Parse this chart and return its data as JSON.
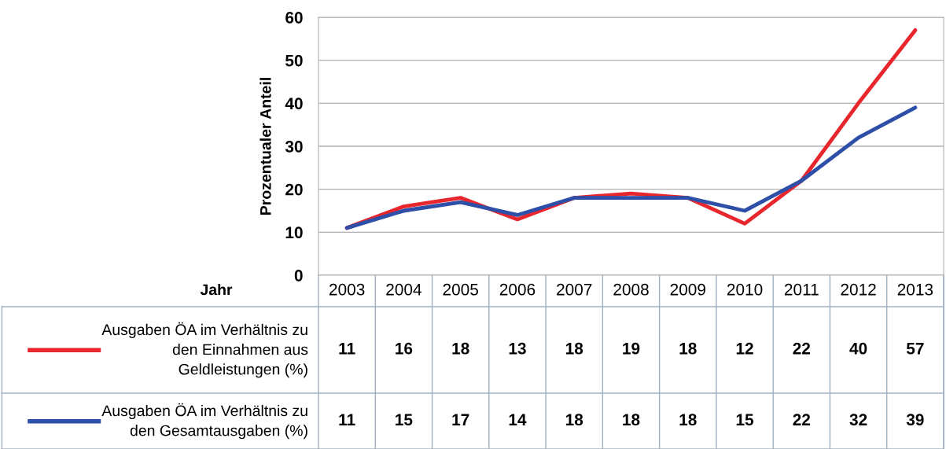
{
  "chart_data": {
    "type": "line",
    "ylabel": "Prozentualer Anteil",
    "xlabel": "Jahr",
    "categories": [
      "2003",
      "2004",
      "2005",
      "2006",
      "2007",
      "2008",
      "2009",
      "2010",
      "2011",
      "2012",
      "2013"
    ],
    "series": [
      {
        "name": "Ausgaben ÖA im Verhältnis zu\nden Einnahmen aus\nGeldleistungen (%)",
        "color": "#e8262d",
        "values": [
          11,
          16,
          18,
          13,
          18,
          19,
          18,
          12,
          22,
          40,
          57
        ]
      },
      {
        "name": "Ausgaben ÖA im Verhältnis zu\nden Gesamtausgaben (%)",
        "color": "#2e4fa8",
        "values": [
          11,
          15,
          17,
          14,
          18,
          18,
          18,
          15,
          22,
          32,
          39
        ]
      }
    ],
    "ylim": [
      0,
      60
    ],
    "yticks": [
      0,
      10,
      20,
      30,
      40,
      50,
      60
    ],
    "grid": "y",
    "legend": "bottom",
    "data_labels": true,
    "marker": "none",
    "line_style": "solid"
  }
}
